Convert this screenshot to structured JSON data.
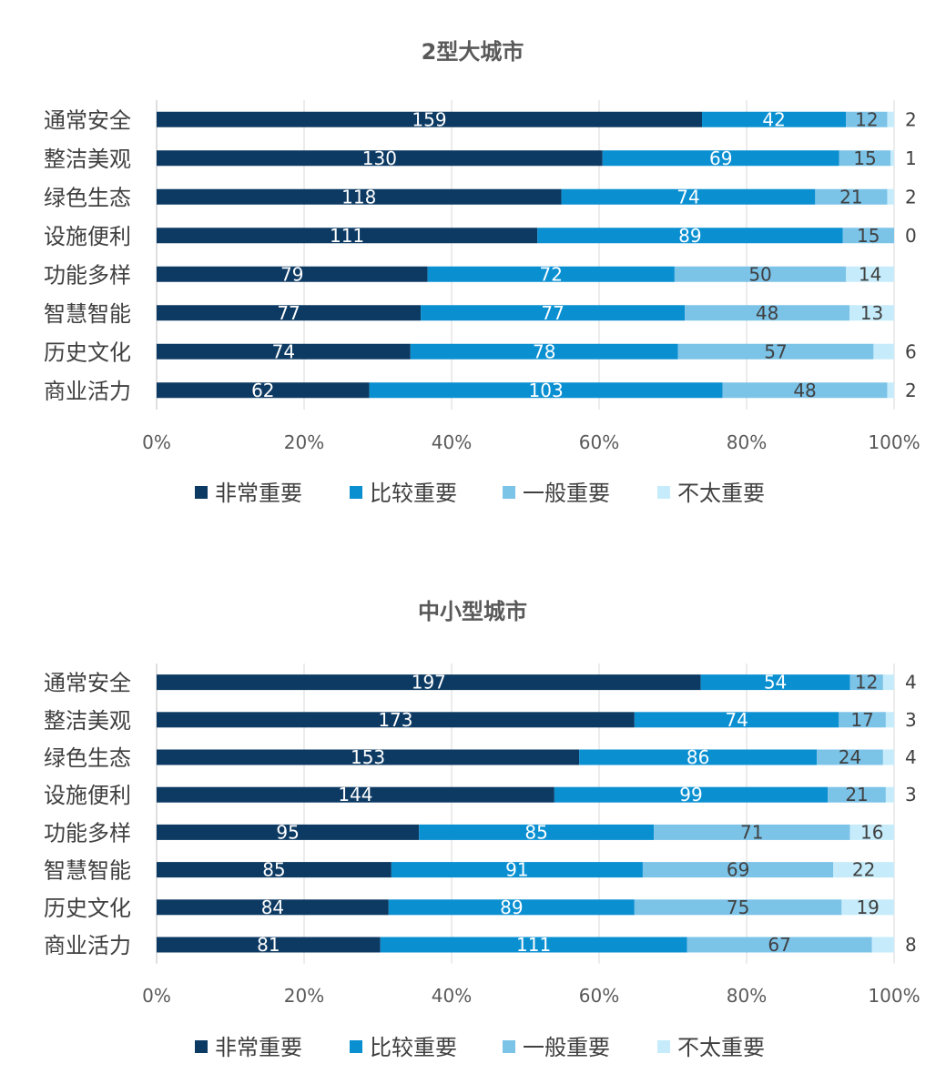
{
  "colors": {
    "very_important": "#0d3a63",
    "fairly_important": "#0a8fd1",
    "generally_important": "#7cc3e8",
    "not_important": "#c6ecfb"
  },
  "chart_data": [
    {
      "type": "bar",
      "orientation": "horizontal",
      "stacking": "percent",
      "title": "2型大城市",
      "categories": [
        "通常安全",
        "整洁美观",
        "绿色生态",
        "设施便利",
        "功能多样",
        "智慧智能",
        "历史文化",
        "商业活力"
      ],
      "series": [
        {
          "name": "非常重要",
          "values": [
            159,
            130,
            118,
            111,
            79,
            77,
            74,
            62
          ]
        },
        {
          "name": "比较重要",
          "values": [
            42,
            69,
            74,
            89,
            72,
            77,
            78,
            103
          ]
        },
        {
          "name": "一般重要",
          "values": [
            12,
            15,
            21,
            15,
            50,
            48,
            57,
            48
          ]
        },
        {
          "name": "不太重要",
          "values": [
            2,
            1,
            2,
            0,
            14,
            13,
            6,
            2
          ]
        }
      ],
      "xticks": [
        "0%",
        "20%",
        "40%",
        "60%",
        "80%",
        "100%"
      ],
      "xlim": [
        0,
        100
      ],
      "grid": true,
      "legend": "bottom"
    },
    {
      "type": "bar",
      "orientation": "horizontal",
      "stacking": "percent",
      "title": "中小型城市",
      "categories": [
        "通常安全",
        "整洁美观",
        "绿色生态",
        "设施便利",
        "功能多样",
        "智慧智能",
        "历史文化",
        "商业活力"
      ],
      "series": [
        {
          "name": "非常重要",
          "values": [
            197,
            173,
            153,
            144,
            95,
            85,
            84,
            81
          ]
        },
        {
          "name": "比较重要",
          "values": [
            54,
            74,
            86,
            99,
            85,
            91,
            89,
            111
          ]
        },
        {
          "name": "一般重要",
          "values": [
            12,
            17,
            24,
            21,
            71,
            69,
            75,
            67
          ]
        },
        {
          "name": "不太重要",
          "values": [
            4,
            3,
            4,
            3,
            16,
            22,
            19,
            8
          ]
        }
      ],
      "xticks": [
        "0%",
        "20%",
        "40%",
        "60%",
        "80%",
        "100%"
      ],
      "xlim": [
        0,
        100
      ],
      "grid": true,
      "legend": "bottom"
    }
  ]
}
